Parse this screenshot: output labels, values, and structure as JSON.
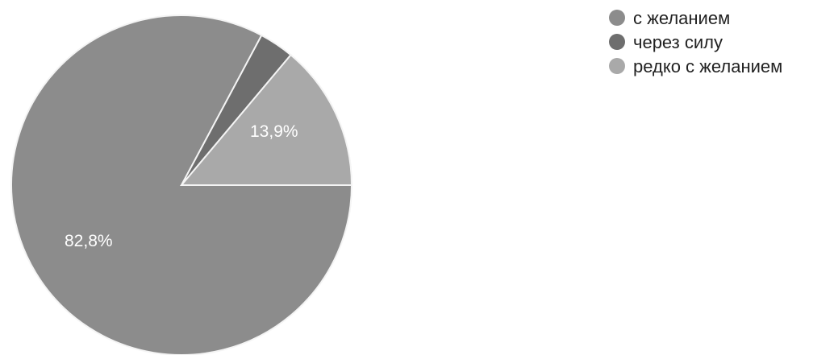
{
  "chart_data": {
    "type": "pie",
    "title": "",
    "legend_position": "top-right",
    "slices": [
      {
        "name": "с желанием",
        "value": 82.8,
        "label": "82,8%",
        "color": "#8c8c8c"
      },
      {
        "name": "через силу",
        "value": 3.3,
        "label": "",
        "color": "#6e6e6e"
      },
      {
        "name": "редко с желанием",
        "value": 13.9,
        "label": "13,9%",
        "color": "#a9a9a9"
      }
    ]
  }
}
